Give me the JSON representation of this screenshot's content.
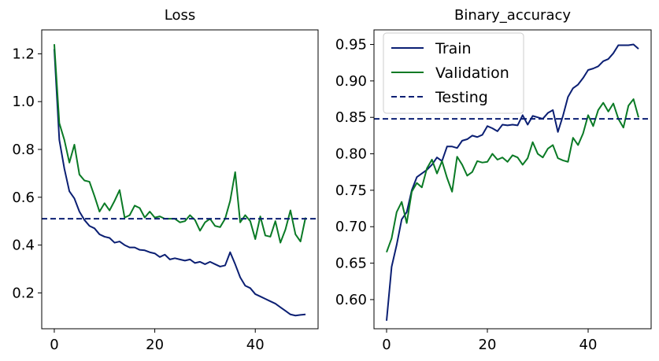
{
  "colors": {
    "train": "#0b1f73",
    "validation": "#0a7a25",
    "testing": "#0b1f73"
  },
  "chart_data": [
    {
      "type": "line",
      "title": "Loss",
      "xlabel": "",
      "ylabel": "",
      "xlim": [
        -2.5,
        52.5
      ],
      "ylim": [
        0.05,
        1.3
      ],
      "xticks": [
        0,
        20,
        40
      ],
      "yticks": [
        0.2,
        0.4,
        0.6,
        0.8,
        1.0,
        1.2
      ],
      "ytick_labels": [
        "0.2",
        "0.4",
        "0.6",
        "0.8",
        "1.0",
        "1.2"
      ],
      "grid": false,
      "series": [
        {
          "key": "train",
          "style": "solid",
          "x": [
            0,
            1,
            2,
            3,
            4,
            5,
            6,
            7,
            8,
            9,
            10,
            11,
            12,
            13,
            14,
            15,
            16,
            17,
            18,
            19,
            20,
            21,
            22,
            23,
            24,
            25,
            26,
            27,
            28,
            29,
            30,
            31,
            32,
            33,
            34,
            35,
            36,
            37,
            38,
            39,
            40,
            41,
            42,
            43,
            44,
            45,
            46,
            47,
            48,
            49,
            50
          ],
          "values": [
            1.22,
            0.84,
            0.72,
            0.625,
            0.595,
            0.54,
            0.505,
            0.48,
            0.47,
            0.445,
            0.435,
            0.43,
            0.41,
            0.415,
            0.4,
            0.39,
            0.39,
            0.38,
            0.378,
            0.37,
            0.365,
            0.35,
            0.36,
            0.34,
            0.345,
            0.34,
            0.335,
            0.34,
            0.325,
            0.33,
            0.32,
            0.33,
            0.32,
            0.31,
            0.315,
            0.37,
            0.32,
            0.265,
            0.23,
            0.22,
            0.195,
            0.185,
            0.175,
            0.165,
            0.155,
            0.14,
            0.125,
            0.11,
            0.105,
            0.108,
            0.11
          ]
        },
        {
          "key": "validation",
          "style": "solid",
          "x": [
            0,
            1,
            2,
            3,
            4,
            5,
            6,
            7,
            8,
            9,
            10,
            11,
            12,
            13,
            14,
            15,
            16,
            17,
            18,
            19,
            20,
            21,
            22,
            23,
            24,
            25,
            26,
            27,
            28,
            29,
            30,
            31,
            32,
            33,
            34,
            35,
            36,
            37,
            38,
            39,
            40,
            41,
            42,
            43,
            44,
            45,
            46,
            47,
            48,
            49,
            50
          ],
          "values": [
            1.24,
            0.91,
            0.84,
            0.745,
            0.82,
            0.695,
            0.67,
            0.665,
            0.605,
            0.54,
            0.575,
            0.545,
            0.585,
            0.63,
            0.515,
            0.525,
            0.565,
            0.555,
            0.515,
            0.54,
            0.515,
            0.52,
            0.51,
            0.51,
            0.51,
            0.495,
            0.5,
            0.525,
            0.505,
            0.46,
            0.495,
            0.51,
            0.48,
            0.475,
            0.51,
            0.585,
            0.705,
            0.495,
            0.525,
            0.5,
            0.425,
            0.52,
            0.44,
            0.435,
            0.5,
            0.41,
            0.465,
            0.545,
            0.445,
            0.415,
            0.515
          ]
        }
      ],
      "hlines": [
        {
          "key": "testing",
          "style": "dashed",
          "y": 0.51
        }
      ]
    },
    {
      "type": "line",
      "title": "Binary_accuracy",
      "xlabel": "",
      "ylabel": "",
      "xlim": [
        -2.5,
        52.5
      ],
      "ylim": [
        0.56,
        0.97
      ],
      "xticks": [
        0,
        20,
        40
      ],
      "yticks": [
        0.6,
        0.65,
        0.7,
        0.75,
        0.8,
        0.85,
        0.9,
        0.95
      ],
      "ytick_labels": [
        "0.60",
        "0.65",
        "0.70",
        "0.75",
        "0.80",
        "0.85",
        "0.90",
        "0.95"
      ],
      "grid": false,
      "legend": {
        "position": "upper-left",
        "entries": [
          {
            "key": "train",
            "label": "Train",
            "style": "solid"
          },
          {
            "key": "validation",
            "label": "Validation",
            "style": "solid"
          },
          {
            "key": "testing",
            "label": "Testing",
            "style": "dashed"
          }
        ]
      },
      "series": [
        {
          "key": "train",
          "style": "solid",
          "x": [
            0,
            1,
            2,
            3,
            4,
            5,
            6,
            7,
            8,
            9,
            10,
            11,
            12,
            13,
            14,
            15,
            16,
            17,
            18,
            19,
            20,
            21,
            22,
            23,
            24,
            25,
            26,
            27,
            28,
            29,
            30,
            31,
            32,
            33,
            34,
            35,
            36,
            37,
            38,
            39,
            40,
            41,
            42,
            43,
            44,
            45,
            46,
            47,
            48,
            49,
            50
          ],
          "values": [
            0.571,
            0.645,
            0.675,
            0.71,
            0.72,
            0.75,
            0.768,
            0.773,
            0.778,
            0.785,
            0.795,
            0.79,
            0.81,
            0.81,
            0.808,
            0.818,
            0.82,
            0.825,
            0.823,
            0.826,
            0.838,
            0.835,
            0.831,
            0.84,
            0.839,
            0.84,
            0.839,
            0.853,
            0.84,
            0.852,
            0.85,
            0.848,
            0.856,
            0.86,
            0.83,
            0.852,
            0.878,
            0.89,
            0.895,
            0.904,
            0.915,
            0.917,
            0.92,
            0.927,
            0.93,
            0.938,
            0.949,
            0.949,
            0.949,
            0.95,
            0.944
          ]
        },
        {
          "key": "validation",
          "style": "solid",
          "x": [
            0,
            1,
            2,
            3,
            4,
            5,
            6,
            7,
            8,
            9,
            10,
            11,
            12,
            13,
            14,
            15,
            16,
            17,
            18,
            19,
            20,
            21,
            22,
            23,
            24,
            25,
            26,
            27,
            28,
            29,
            30,
            31,
            32,
            33,
            34,
            35,
            36,
            37,
            38,
            39,
            40,
            41,
            42,
            43,
            44,
            45,
            46,
            47,
            48,
            49,
            50
          ],
          "values": [
            0.665,
            0.684,
            0.72,
            0.734,
            0.705,
            0.748,
            0.76,
            0.754,
            0.78,
            0.792,
            0.773,
            0.79,
            0.767,
            0.748,
            0.796,
            0.785,
            0.77,
            0.775,
            0.79,
            0.788,
            0.789,
            0.8,
            0.792,
            0.795,
            0.789,
            0.798,
            0.795,
            0.785,
            0.794,
            0.816,
            0.8,
            0.795,
            0.807,
            0.812,
            0.794,
            0.791,
            0.789,
            0.822,
            0.812,
            0.828,
            0.853,
            0.838,
            0.86,
            0.87,
            0.858,
            0.869,
            0.848,
            0.836,
            0.866,
            0.875,
            0.85
          ]
        }
      ],
      "hlines": [
        {
          "key": "testing",
          "style": "dashed",
          "y": 0.848
        }
      ]
    }
  ]
}
